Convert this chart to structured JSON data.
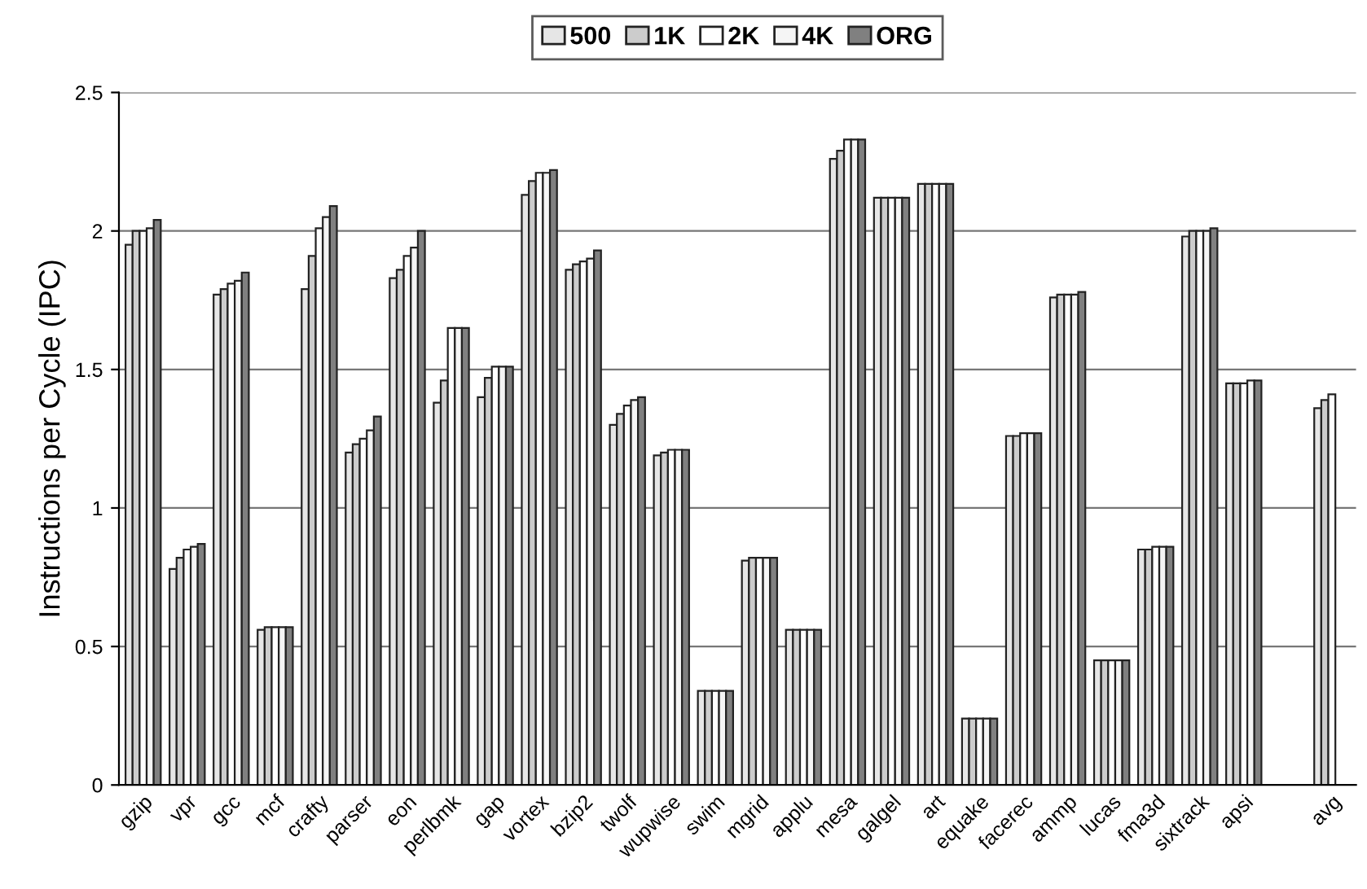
{
  "chart_data": {
    "type": "bar",
    "ylabel": "Instructions per Cycle (IPC)",
    "categories": [
      "gzip",
      "vpr",
      "gcc",
      "mcf",
      "crafty",
      "parser",
      "eon",
      "perlbmk",
      "gap",
      "vortex",
      "bzip2",
      "twolf",
      "wupwise",
      "swim",
      "mgrid",
      "applu",
      "mesa",
      "galgel",
      "art",
      "equake",
      "facerec",
      "ammp",
      "lucas",
      "fma3d",
      "sixtrack",
      "apsi",
      null,
      "avg"
    ],
    "series": [
      {
        "name": "500",
        "color": "#e6e6e6",
        "values": [
          1.95,
          0.78,
          1.77,
          0.56,
          1.79,
          1.2,
          1.83,
          1.38,
          1.4,
          2.13,
          1.86,
          1.3,
          1.19,
          0.34,
          0.81,
          0.56,
          2.26,
          2.12,
          2.17,
          0.24,
          1.26,
          1.76,
          0.45,
          0.85,
          1.98,
          1.45,
          null,
          1.36
        ]
      },
      {
        "name": "1K",
        "color": "#cccccc",
        "values": [
          2.0,
          0.82,
          1.79,
          0.57,
          1.91,
          1.23,
          1.86,
          1.46,
          1.47,
          2.18,
          1.88,
          1.34,
          1.2,
          0.34,
          0.82,
          0.56,
          2.29,
          2.12,
          2.17,
          0.24,
          1.26,
          1.77,
          0.45,
          0.85,
          2.0,
          1.45,
          null,
          1.39
        ]
      },
      {
        "name": "2K",
        "color": "#ffffff",
        "values": [
          2.0,
          0.85,
          1.81,
          0.57,
          2.01,
          1.25,
          1.91,
          1.65,
          1.51,
          2.21,
          1.89,
          1.37,
          1.21,
          0.34,
          0.82,
          0.56,
          2.33,
          2.12,
          2.17,
          0.24,
          1.27,
          1.77,
          0.45,
          0.86,
          2.0,
          1.45,
          null,
          1.41
        ]
      },
      {
        "name": "4K",
        "color": "#f5f5f5",
        "values": [
          2.01,
          0.86,
          1.82,
          0.57,
          2.05,
          1.28,
          1.94,
          1.65,
          1.51,
          2.21,
          1.9,
          1.39,
          1.21,
          0.34,
          0.82,
          0.56,
          2.33,
          2.12,
          2.17,
          0.24,
          1.27,
          1.77,
          0.45,
          0.86,
          2.0,
          1.46,
          null,
          null
        ]
      },
      {
        "name": "ORG",
        "color": "#808080",
        "values": [
          2.04,
          0.87,
          1.85,
          0.57,
          2.09,
          1.33,
          2.0,
          1.65,
          1.51,
          2.22,
          1.93,
          1.4,
          1.21,
          0.34,
          0.82,
          0.56,
          2.33,
          2.12,
          2.17,
          0.24,
          1.27,
          1.78,
          0.45,
          0.86,
          2.01,
          1.46,
          null,
          null
        ]
      }
    ],
    "ylim": [
      0,
      2.5
    ],
    "yticks": [
      0,
      0.5,
      1,
      1.5,
      2,
      2.5
    ],
    "grid": "y",
    "legend": "top"
  }
}
